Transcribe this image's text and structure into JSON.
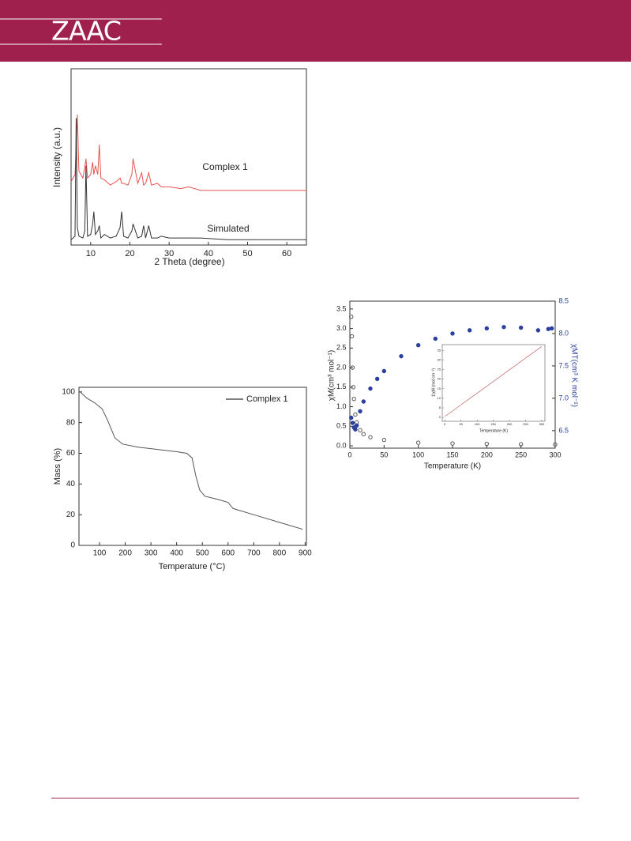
{
  "header": {
    "journal": "ZAAC"
  },
  "chart_data": [
    {
      "type": "line",
      "x_label": "2 Theta (degree)",
      "y_label": "Intensity (a.u.)",
      "xlim": [
        5,
        65
      ],
      "ylim": [
        0,
        100
      ],
      "xticks": [
        10,
        20,
        30,
        40,
        50,
        60
      ],
      "x": [
        5,
        6,
        6.3,
        6.6,
        7,
        8,
        8.5,
        8.8,
        9.2,
        10,
        10.5,
        10.8,
        11.2,
        11.8,
        12.2,
        12.6,
        13.5,
        15,
        16.5,
        17.5,
        17.9,
        18.4,
        19.5,
        20.5,
        20.8,
        22,
        23,
        23.5,
        24,
        24.8,
        25.5,
        27,
        28,
        30,
        33,
        35,
        38,
        45,
        55,
        65
      ],
      "series": [
        {
          "name": "Complex 1",
          "color": "#e8534f",
          "values": [
            36,
            40,
            55,
            74,
            42,
            38,
            44,
            49,
            38,
            40,
            47,
            40,
            45,
            40,
            57,
            38,
            37,
            34,
            36,
            38,
            35,
            35,
            34,
            40,
            49,
            35,
            41,
            34,
            35,
            41,
            34,
            35,
            33,
            33,
            32,
            33,
            31,
            31,
            31,
            31
          ]
        },
        {
          "name": "Simulated",
          "color": "#333333",
          "values": [
            3,
            5,
            72,
            10,
            5,
            4,
            8,
            45,
            5,
            6,
            12,
            19,
            6,
            8,
            11,
            4,
            6,
            4,
            5,
            10,
            19,
            5,
            4,
            8,
            12,
            4,
            5,
            11,
            4,
            11,
            4,
            4,
            5,
            4,
            4,
            4,
            4,
            3,
            3,
            3
          ]
        }
      ]
    },
    {
      "type": "line",
      "x_label": "Temperature (°C)",
      "y_label": "Mass (%)",
      "legend": "upper-right",
      "xlim": [
        20,
        905
      ],
      "ylim": [
        0,
        103
      ],
      "xticks": [
        100,
        200,
        300,
        400,
        500,
        600,
        700,
        800,
        900
      ],
      "yticks": [
        0,
        20,
        40,
        60,
        80,
        100
      ],
      "x": [
        25,
        50,
        80,
        110,
        130,
        160,
        190,
        250,
        300,
        400,
        440,
        460,
        475,
        490,
        510,
        560,
        600,
        620,
        700,
        800,
        890
      ],
      "series": [
        {
          "name": "Complex 1",
          "color": "#555555",
          "values": [
            100,
            96,
            93,
            89,
            82,
            70,
            66,
            64,
            63,
            61,
            60,
            57,
            45,
            36,
            32,
            30,
            28,
            24,
            20,
            15,
            10.5
          ]
        }
      ]
    },
    {
      "type": "scatter",
      "x_label": "Temperature (K)",
      "y_label": "χM(cm³ mol⁻¹)",
      "y2_label": "χMT(cm³ K mol⁻¹)",
      "y2_color": "#2a3f9f",
      "xlim": [
        0,
        300
      ],
      "ylim": [
        -0.06,
        3.7
      ],
      "y2lim": [
        6.23,
        8.5
      ],
      "xticks": [
        0,
        50,
        100,
        150,
        200,
        250,
        300
      ],
      "yticks": [
        {
          "value": 0,
          "label": "0.0"
        },
        0.5,
        {
          "value": 1,
          "label": "1.0"
        },
        1.5,
        {
          "value": 2,
          "label": "2.0"
        },
        2.5,
        {
          "value": 3,
          "label": "3.0"
        },
        3.5
      ],
      "y2ticks": [
        6.5,
        {
          "value": 7,
          "label": "7.0"
        },
        7.5,
        {
          "value": 8,
          "label": "8.0"
        },
        8.5
      ],
      "series": [
        {
          "name": "χM",
          "color": "#555555",
          "x": [
            2,
            3,
            4,
            5,
            6,
            8,
            10,
            15,
            20,
            30,
            50,
            100,
            150,
            200,
            250,
            300
          ],
          "values": [
            3.3,
            2.8,
            2.0,
            1.5,
            1.2,
            0.8,
            0.6,
            0.4,
            0.3,
            0.22,
            0.15,
            0.08,
            0.06,
            0.05,
            0.04,
            0.035
          ]
        },
        {
          "name": "χMT",
          "color": "#2a3f9f",
          "axis": "y2",
          "x": [
            2,
            4,
            6,
            8,
            10,
            15,
            20,
            30,
            40,
            50,
            75,
            100,
            125,
            150,
            175,
            200,
            225,
            250,
            275,
            290,
            295
          ],
          "values": [
            6.7,
            6.62,
            6.55,
            6.52,
            6.58,
            6.8,
            6.95,
            7.15,
            7.3,
            7.42,
            7.65,
            7.82,
            7.92,
            8.0,
            8.05,
            8.08,
            8.1,
            8.09,
            8.05,
            8.07,
            8.08
          ]
        }
      ]
    },
    {
      "type": "line",
      "x_label": "Temperature (K)",
      "y_label": "1/χM (mol cm⁻³)",
      "xlim": [
        -8,
        310
      ],
      "ylim": [
        -2,
        38
      ],
      "xticks": [
        0,
        50,
        100,
        150,
        200,
        250,
        300
      ],
      "yticks": [
        0,
        5,
        10,
        15,
        20,
        25,
        30,
        35
      ],
      "x": [
        0,
        300
      ],
      "series": [
        {
          "name": "1/χM",
          "color": "#b5474a",
          "values": [
            0.5,
            37
          ]
        }
      ]
    }
  ]
}
